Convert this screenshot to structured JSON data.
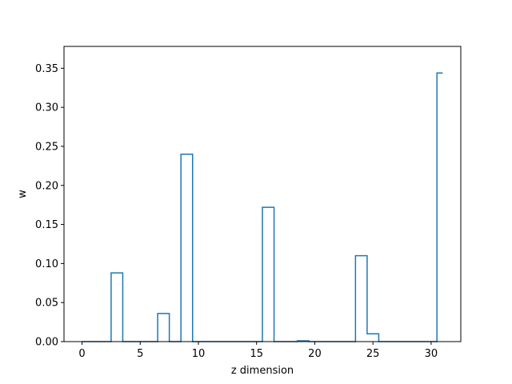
{
  "chart_data": {
    "type": "line",
    "drawstyle": "steps-mid",
    "title": "",
    "xlabel": "z dimension",
    "ylabel": "w",
    "xlim": [
      -1.55,
      32.55
    ],
    "ylim": [
      0.0,
      0.378
    ],
    "xticks": [
      0,
      5,
      10,
      15,
      20,
      25,
      30
    ],
    "yticks": [
      0.0,
      0.05,
      0.1,
      0.15,
      0.2,
      0.25,
      0.3,
      0.35
    ],
    "ytick_labels": [
      "0.00",
      "0.05",
      "0.10",
      "0.15",
      "0.20",
      "0.25",
      "0.30",
      "0.35"
    ],
    "grid": false,
    "legend": "none",
    "series": [
      {
        "color": "#1f77b4",
        "x": [
          0,
          1,
          2,
          3,
          4,
          5,
          6,
          7,
          8,
          9,
          10,
          11,
          12,
          13,
          14,
          15,
          16,
          17,
          18,
          19,
          20,
          21,
          22,
          23,
          24,
          25,
          26,
          27,
          28,
          29,
          30,
          31
        ],
        "y": [
          0,
          0,
          0,
          0.088,
          0,
          0,
          0,
          0.036,
          0,
          0.24,
          0,
          0,
          0,
          0,
          0,
          0,
          0.172,
          0,
          0,
          0.001,
          0,
          0,
          0,
          0,
          0.11,
          0.01,
          0,
          0,
          0,
          0,
          0,
          0.344
        ]
      }
    ]
  }
}
